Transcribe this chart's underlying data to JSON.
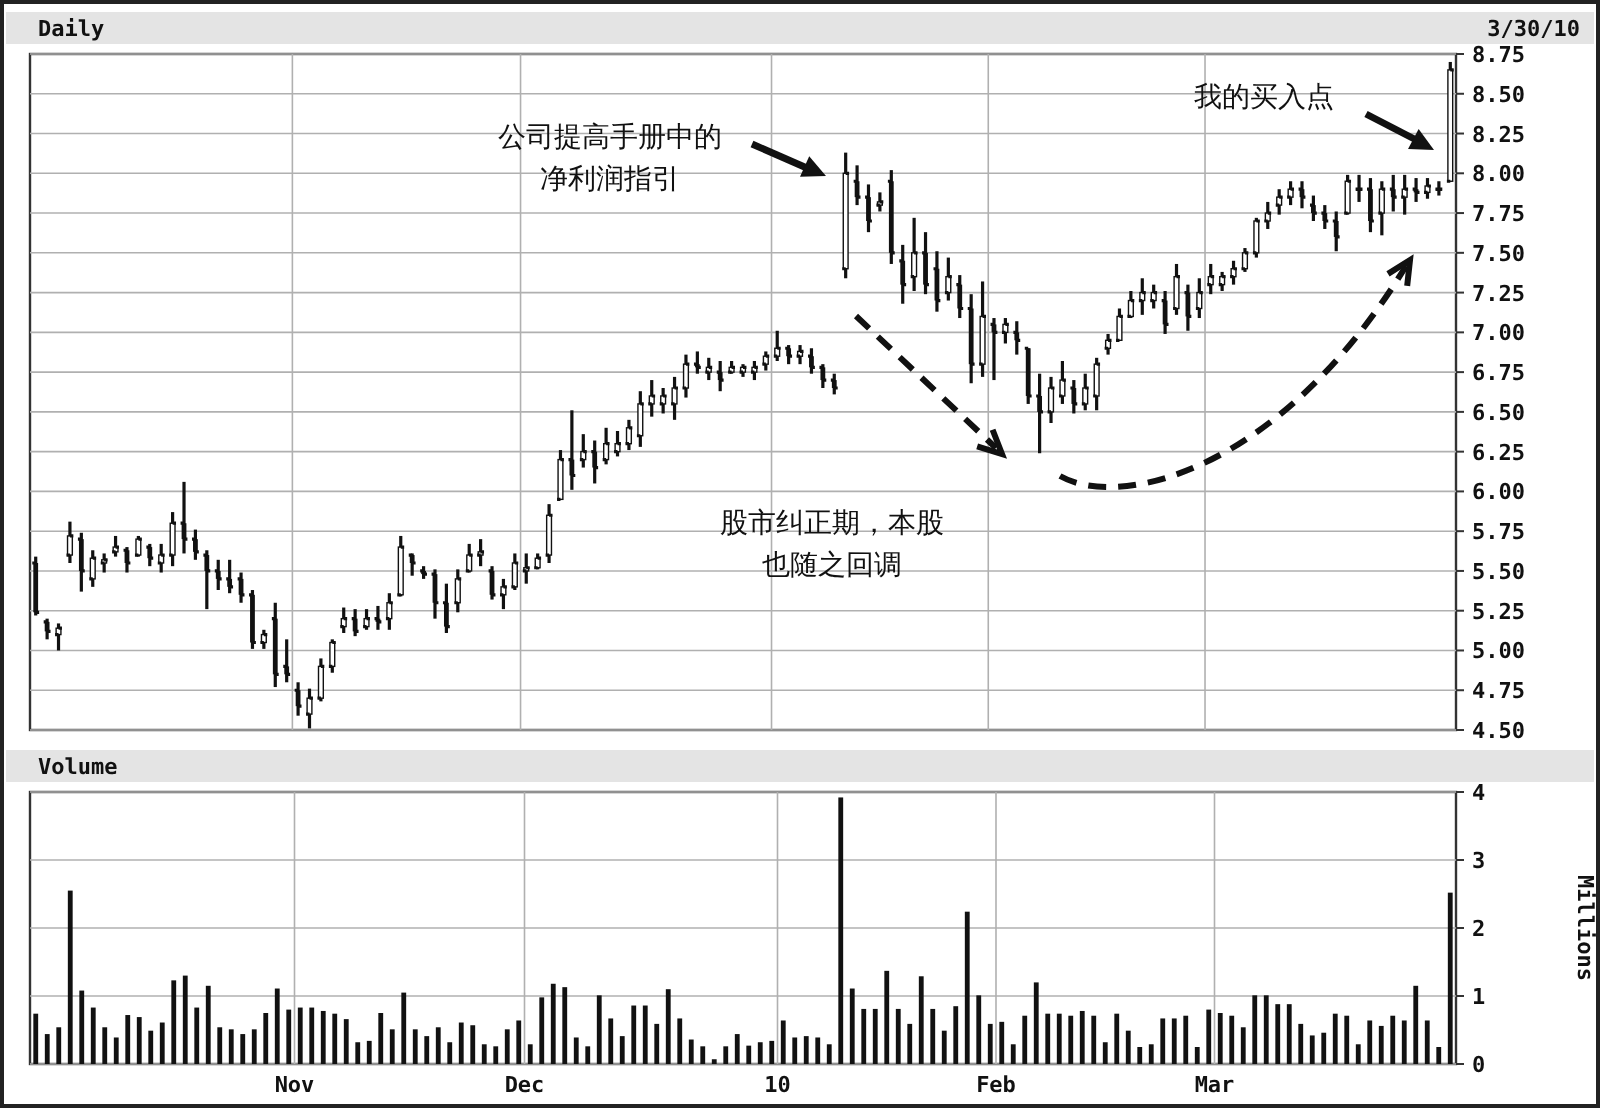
{
  "chart_data": [
    {
      "type": "candlestick",
      "title": "Daily",
      "color": "#111111",
      "ylim": [
        4.5,
        8.75
      ],
      "grid": true,
      "tick_labels": "y",
      "yticks": [
        {
          "value": 4.5,
          "label": "4.50"
        },
        {
          "value": 4.75,
          "label": "4.75"
        },
        {
          "value": 5,
          "label": "5.00"
        },
        {
          "value": 5.25,
          "label": "5.25"
        },
        {
          "value": 5.5,
          "label": "5.50"
        },
        {
          "value": 5.75,
          "label": "5.75"
        },
        {
          "value": 6,
          "label": "6.00"
        },
        {
          "value": 6.25,
          "label": "6.25"
        },
        {
          "value": 6.5,
          "label": "6.50"
        },
        {
          "value": 6.75,
          "label": "6.75"
        },
        {
          "value": 7,
          "label": "7.00"
        },
        {
          "value": 7.25,
          "label": "7.25"
        },
        {
          "value": 7.5,
          "label": "7.50"
        },
        {
          "value": 7.75,
          "label": "7.75"
        },
        {
          "value": 8,
          "label": "8.00"
        },
        {
          "value": 8.25,
          "label": "8.25"
        },
        {
          "value": 8.5,
          "label": "8.50"
        },
        {
          "value": 8.75,
          "label": "8.75"
        }
      ],
      "annotations": [
        "3/30/10",
        "公司提高手册中的净利润指引",
        "我的买入点",
        "股市纠正期，本股也随之回调"
      ],
      "categories": [
        null,
        null,
        null,
        null,
        null,
        null,
        null,
        null,
        null,
        null,
        null,
        null,
        null,
        null,
        null,
        null,
        null,
        null,
        null,
        null,
        null,
        null,
        null,
        null,
        null,
        null,
        null,
        null,
        null,
        null,
        null,
        null,
        null,
        null,
        null,
        null,
        null,
        null,
        null,
        null,
        null,
        null,
        null,
        null,
        null,
        null,
        null,
        null,
        null,
        null,
        null,
        null,
        null,
        null,
        null,
        null,
        null,
        null,
        null,
        null,
        null,
        null,
        null,
        null,
        null,
        null,
        null,
        null,
        null,
        null,
        null,
        null,
        null,
        null,
        null,
        null,
        null,
        null,
        null,
        null,
        null,
        null,
        null,
        null,
        null,
        null,
        null,
        null,
        null,
        null,
        null,
        null,
        null,
        null,
        null,
        null,
        null,
        null,
        null,
        null,
        null,
        null,
        null,
        null,
        null,
        null,
        null,
        null,
        null,
        null,
        null,
        null,
        null,
        null,
        null,
        null,
        null,
        null,
        null,
        null,
        null,
        null,
        null,
        null,
        null
      ],
      "ohlc": [
        [
          5.55,
          5.59,
          5.22,
          5.24
        ],
        [
          5.18,
          5.2,
          5.07,
          5.12
        ],
        [
          5.1,
          5.17,
          5.0,
          5.14
        ],
        [
          5.6,
          5.81,
          5.55,
          5.72
        ],
        [
          5.7,
          5.74,
          5.37,
          5.5
        ],
        [
          5.45,
          5.63,
          5.4,
          5.58
        ],
        [
          5.55,
          5.61,
          5.49,
          5.57
        ],
        [
          5.62,
          5.72,
          5.59,
          5.65
        ],
        [
          5.63,
          5.65,
          5.49,
          5.55
        ],
        [
          5.6,
          5.72,
          5.59,
          5.7
        ],
        [
          5.65,
          5.67,
          5.53,
          5.58
        ],
        [
          5.55,
          5.67,
          5.49,
          5.6
        ],
        [
          5.6,
          5.87,
          5.53,
          5.8
        ],
        [
          5.8,
          6.06,
          5.61,
          5.7
        ],
        [
          5.7,
          5.76,
          5.57,
          5.62
        ],
        [
          5.6,
          5.63,
          5.26,
          5.5
        ],
        [
          5.5,
          5.57,
          5.38,
          5.45
        ],
        [
          5.45,
          5.57,
          5.36,
          5.4
        ],
        [
          5.45,
          5.49,
          5.3,
          5.35
        ],
        [
          5.35,
          5.38,
          5.01,
          5.05
        ],
        [
          5.05,
          5.13,
          5.01,
          5.1
        ],
        [
          5.2,
          5.3,
          4.77,
          4.85
        ],
        [
          4.9,
          5.07,
          4.8,
          4.85
        ],
        [
          4.75,
          4.8,
          4.59,
          4.65
        ],
        [
          4.6,
          4.76,
          4.51,
          4.7
        ],
        [
          4.7,
          4.95,
          4.68,
          4.9
        ],
        [
          4.9,
          5.07,
          4.86,
          5.05
        ],
        [
          5.15,
          5.27,
          5.11,
          5.2
        ],
        [
          5.2,
          5.26,
          5.09,
          5.12
        ],
        [
          5.15,
          5.26,
          5.13,
          5.2
        ],
        [
          5.2,
          5.28,
          5.13,
          5.18
        ],
        [
          5.2,
          5.36,
          5.13,
          5.3
        ],
        [
          5.35,
          5.72,
          5.34,
          5.65
        ],
        [
          5.6,
          5.61,
          5.47,
          5.55
        ],
        [
          5.5,
          5.53,
          5.45,
          5.48
        ],
        [
          5.48,
          5.51,
          5.2,
          5.3
        ],
        [
          5.3,
          5.42,
          5.11,
          5.15
        ],
        [
          5.3,
          5.51,
          5.24,
          5.45
        ],
        [
          5.5,
          5.67,
          5.49,
          5.6
        ],
        [
          5.6,
          5.7,
          5.53,
          5.62
        ],
        [
          5.5,
          5.53,
          5.32,
          5.35
        ],
        [
          5.35,
          5.45,
          5.26,
          5.4
        ],
        [
          5.4,
          5.61,
          5.38,
          5.55
        ],
        [
          5.5,
          5.61,
          5.42,
          5.52
        ],
        [
          5.52,
          5.61,
          5.51,
          5.58
        ],
        [
          5.6,
          5.92,
          5.55,
          5.85
        ],
        [
          5.95,
          6.26,
          5.95,
          6.2
        ],
        [
          6.2,
          6.51,
          6.01,
          6.1
        ],
        [
          6.2,
          6.36,
          6.15,
          6.25
        ],
        [
          6.25,
          6.32,
          6.05,
          6.15
        ],
        [
          6.2,
          6.4,
          6.17,
          6.3
        ],
        [
          6.25,
          6.38,
          6.22,
          6.3
        ],
        [
          6.3,
          6.45,
          6.26,
          6.4
        ],
        [
          6.35,
          6.63,
          6.28,
          6.55
        ],
        [
          6.55,
          6.7,
          6.47,
          6.6
        ],
        [
          6.55,
          6.65,
          6.49,
          6.6
        ],
        [
          6.55,
          6.72,
          6.45,
          6.65
        ],
        [
          6.65,
          6.86,
          6.59,
          6.8
        ],
        [
          6.8,
          6.88,
          6.74,
          6.78
        ],
        [
          6.75,
          6.84,
          6.7,
          6.78
        ],
        [
          6.75,
          6.82,
          6.63,
          6.7
        ],
        [
          6.75,
          6.82,
          6.74,
          6.78
        ],
        [
          6.75,
          6.8,
          6.72,
          6.78
        ],
        [
          6.75,
          6.82,
          6.7,
          6.78
        ],
        [
          6.8,
          6.88,
          6.76,
          6.85
        ],
        [
          6.85,
          7.01,
          6.82,
          6.9
        ],
        [
          6.9,
          6.92,
          6.8,
          6.85
        ],
        [
          6.85,
          6.92,
          6.8,
          6.88
        ],
        [
          6.85,
          6.9,
          6.74,
          6.78
        ],
        [
          6.78,
          6.8,
          6.65,
          6.7
        ],
        [
          6.7,
          6.74,
          6.61,
          6.65
        ],
        [
          7.4,
          8.13,
          7.34,
          8.0
        ],
        [
          7.95,
          8.05,
          7.8,
          7.85
        ],
        [
          7.85,
          7.93,
          7.63,
          7.7
        ],
        [
          7.8,
          7.88,
          7.76,
          7.82
        ],
        [
          7.95,
          8.02,
          7.43,
          7.5
        ],
        [
          7.45,
          7.55,
          7.18,
          7.3
        ],
        [
          7.35,
          7.72,
          7.26,
          7.5
        ],
        [
          7.5,
          7.63,
          7.24,
          7.3
        ],
        [
          7.4,
          7.51,
          7.13,
          7.2
        ],
        [
          7.25,
          7.47,
          7.2,
          7.35
        ],
        [
          7.3,
          7.36,
          7.09,
          7.15
        ],
        [
          7.15,
          7.24,
          6.68,
          6.8
        ],
        [
          6.8,
          7.32,
          6.72,
          7.1
        ],
        [
          7.05,
          7.09,
          6.7,
          7.0
        ],
        [
          7.0,
          7.09,
          6.93,
          7.05
        ],
        [
          7.0,
          7.07,
          6.86,
          6.95
        ],
        [
          6.9,
          6.9,
          6.55,
          6.6
        ],
        [
          6.6,
          6.74,
          6.24,
          6.5
        ],
        [
          6.5,
          6.72,
          6.43,
          6.65
        ],
        [
          6.6,
          6.82,
          6.55,
          6.7
        ],
        [
          6.65,
          6.7,
          6.49,
          6.55
        ],
        [
          6.55,
          6.74,
          6.51,
          6.65
        ],
        [
          6.6,
          6.84,
          6.51,
          6.8
        ],
        [
          6.9,
          6.99,
          6.86,
          6.95
        ],
        [
          6.95,
          7.15,
          6.95,
          7.1
        ],
        [
          7.1,
          7.26,
          7.09,
          7.2
        ],
        [
          7.2,
          7.34,
          7.11,
          7.25
        ],
        [
          7.2,
          7.3,
          7.15,
          7.25
        ],
        [
          7.2,
          7.26,
          6.99,
          7.05
        ],
        [
          7.15,
          7.43,
          7.11,
          7.35
        ],
        [
          7.25,
          7.3,
          7.01,
          7.1
        ],
        [
          7.15,
          7.34,
          7.09,
          7.25
        ],
        [
          7.3,
          7.43,
          7.24,
          7.35
        ],
        [
          7.3,
          7.38,
          7.26,
          7.35
        ],
        [
          7.35,
          7.45,
          7.3,
          7.4
        ],
        [
          7.4,
          7.53,
          7.38,
          7.5
        ],
        [
          7.5,
          7.72,
          7.47,
          7.7
        ],
        [
          7.7,
          7.82,
          7.65,
          7.75
        ],
        [
          7.8,
          7.9,
          7.74,
          7.85
        ],
        [
          7.85,
          7.95,
          7.8,
          7.9
        ],
        [
          7.9,
          7.95,
          7.78,
          7.85
        ],
        [
          7.8,
          7.86,
          7.7,
          7.75
        ],
        [
          7.75,
          7.8,
          7.65,
          7.7
        ],
        [
          7.7,
          7.76,
          7.51,
          7.6
        ],
        [
          7.75,
          7.99,
          7.74,
          7.95
        ],
        [
          7.9,
          7.99,
          7.82,
          7.9
        ],
        [
          7.9,
          7.97,
          7.63,
          7.7
        ],
        [
          7.75,
          7.95,
          7.61,
          7.9
        ],
        [
          7.9,
          7.99,
          7.76,
          7.85
        ],
        [
          7.85,
          7.99,
          7.74,
          7.9
        ],
        [
          7.9,
          7.97,
          7.82,
          7.88
        ],
        [
          7.88,
          7.97,
          7.84,
          7.92
        ],
        [
          7.9,
          7.95,
          7.86,
          7.9
        ],
        [
          7.95,
          8.7,
          7.95,
          8.65
        ]
      ]
    },
    {
      "type": "bar",
      "title": "Volume",
      "color": "#111111",
      "ylabel": "Millions",
      "ylim": [
        0,
        4
      ],
      "yticks": [
        0,
        1,
        2,
        3,
        4
      ],
      "grid": true,
      "categories": [
        null,
        null,
        null,
        null,
        null,
        null,
        null,
        null,
        null,
        null,
        null,
        null,
        null,
        null,
        null,
        null,
        null,
        null,
        null,
        null,
        null,
        null,
        null,
        "Nov",
        null,
        null,
        null,
        null,
        null,
        null,
        null,
        null,
        null,
        null,
        null,
        null,
        null,
        null,
        null,
        null,
        null,
        null,
        null,
        "Dec",
        null,
        null,
        null,
        null,
        null,
        null,
        null,
        null,
        null,
        null,
        null,
        null,
        null,
        null,
        null,
        null,
        null,
        null,
        null,
        null,
        null,
        "10",
        null,
        null,
        null,
        null,
        null,
        null,
        null,
        null,
        null,
        null,
        null,
        null,
        null,
        null,
        null,
        null,
        null,
        null,
        "Feb",
        null,
        null,
        null,
        null,
        null,
        null,
        null,
        null,
        null,
        null,
        null,
        null,
        null,
        null,
        null,
        null,
        null,
        null,
        "Mar",
        null,
        null,
        null,
        null,
        null,
        null,
        null,
        null,
        null,
        null,
        null,
        null,
        null,
        null,
        null,
        null,
        null,
        null,
        null,
        null
      ],
      "values": [
        0.74,
        0.44,
        0.54,
        2.55,
        1.08,
        0.83,
        0.54,
        0.39,
        0.72,
        0.69,
        0.49,
        0.61,
        1.23,
        1.3,
        0.83,
        1.15,
        0.54,
        0.51,
        0.44,
        0.51,
        0.75,
        1.11,
        0.8,
        0.83,
        0.83,
        0.78,
        0.74,
        0.66,
        0.32,
        0.34,
        0.75,
        0.51,
        1.05,
        0.51,
        0.41,
        0.54,
        0.32,
        0.61,
        0.57,
        0.29,
        0.26,
        0.51,
        0.64,
        0.29,
        0.98,
        1.18,
        1.13,
        0.39,
        0.26,
        1.01,
        0.67,
        0.41,
        0.86,
        0.86,
        0.59,
        1.1,
        0.67,
        0.36,
        0.26,
        0.07,
        0.26,
        0.44,
        0.27,
        0.32,
        0.34,
        0.64,
        0.39,
        0.41,
        0.39,
        0.29,
        3.92,
        1.11,
        0.81,
        0.81,
        1.37,
        0.81,
        0.59,
        1.29,
        0.81,
        0.49,
        0.85,
        2.24,
        1.01,
        0.59,
        0.62,
        0.29,
        0.71,
        1.2,
        0.74,
        0.74,
        0.71,
        0.78,
        0.71,
        0.32,
        0.74,
        0.49,
        0.25,
        0.29,
        0.67,
        0.67,
        0.71,
        0.25,
        0.8,
        0.75,
        0.71,
        0.54,
        1.01,
        1.01,
        0.88,
        0.88,
        0.59,
        0.42,
        0.46,
        0.74,
        0.71,
        0.29,
        0.64,
        0.56,
        0.71,
        0.64,
        1.15,
        0.64,
        0.25,
        2.52
      ]
    }
  ]
}
